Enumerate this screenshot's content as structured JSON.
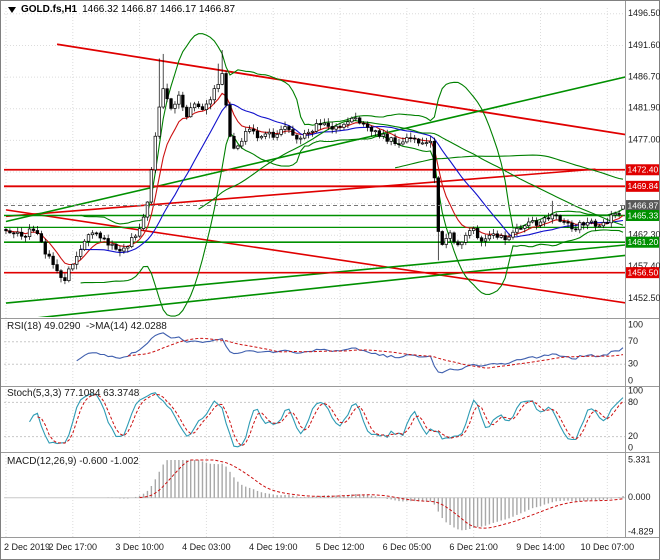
{
  "header": {
    "symbol_timeframe": "GOLD.fs,H1",
    "ohlc": "1466.32 1466.87 1466.17 1466.87"
  },
  "chart_data": {
    "type": "candlestick",
    "symbol": "GOLD.fs",
    "timeframe": "H1",
    "last_candle": {
      "open": 1466.32,
      "high": 1466.87,
      "low": 1466.17,
      "close": 1466.87
    },
    "n_bars": 158,
    "bars_per_x_label": 17,
    "x_labels": [
      "2 Dec 2019",
      "2 Dec 17:00",
      "3 Dec 10:00",
      "4 Dec 03:00",
      "4 Dec 19:00",
      "5 Dec 12:00",
      "6 Dec 05:00",
      "6 Dec 21:00",
      "9 Dec 14:00",
      "10 Dec 07:00"
    ],
    "y_axis_range": {
      "top": 1497.4,
      "bottom": 1449.8
    },
    "y_ticks": [
      {
        "label": "1496.50",
        "price": 1496.5
      },
      {
        "label": "1491.60",
        "price": 1491.6
      },
      {
        "label": "1486.70",
        "price": 1486.7
      },
      {
        "label": "1481.90",
        "price": 1481.9
      },
      {
        "label": "1477.00",
        "price": 1477.0
      },
      {
        "label": "1462.30",
        "price": 1462.3
      },
      {
        "label": "1457.40",
        "price": 1457.4
      },
      {
        "label": "1452.50",
        "price": 1452.5
      }
    ],
    "price_badges": [
      {
        "label": "1472.40",
        "price": 1472.4,
        "color": "#e00000"
      },
      {
        "label": "1469.84",
        "price": 1469.84,
        "color": "#e00000"
      },
      {
        "label": "1466.87",
        "price": 1466.87,
        "color": "#585858"
      },
      {
        "label": "1465.33",
        "price": 1465.33,
        "color": "#009000"
      },
      {
        "label": "1461.20",
        "price": 1461.2,
        "color": "#009000"
      },
      {
        "label": "1456.50",
        "price": 1456.5,
        "color": "#e00000"
      }
    ],
    "levels": [
      {
        "price": 1472.4,
        "color": "#e00000",
        "width": 1.8
      },
      {
        "price": 1469.84,
        "color": "#e00000",
        "width": 1.8
      },
      {
        "price": 1465.33,
        "color": "#009000",
        "width": 1.6
      },
      {
        "price": 1463.5,
        "color": "#009000",
        "width": 1.2
      },
      {
        "price": 1461.2,
        "color": "#009000",
        "width": 1.6
      },
      {
        "price": 1456.5,
        "color": "#e00000",
        "width": 1.6
      }
    ],
    "bid_line": {
      "price": 1466.87,
      "color": "#777777"
    },
    "trendlines": [
      {
        "b1": 13,
        "p1": 1491.8,
        "b2": 158,
        "p2": 1477.8,
        "color": "#e00000",
        "width": 1.8
      },
      {
        "b1": 0,
        "p1": 1465.2,
        "b2": 150,
        "p2": 1472.5,
        "color": "#e00000",
        "width": 1.6
      },
      {
        "b1": 0,
        "p1": 1466.2,
        "b2": 158,
        "p2": 1451.8,
        "color": "#e00000",
        "width": 1.6
      },
      {
        "b1": 0,
        "p1": 1464.4,
        "b2": 158,
        "p2": 1486.8,
        "color": "#009000",
        "width": 1.6
      },
      {
        "b1": 0,
        "p1": 1451.8,
        "b2": 158,
        "p2": 1460.8,
        "color": "#009000",
        "width": 1.6
      },
      {
        "b1": 0,
        "p1": 1449.0,
        "b2": 158,
        "p2": 1459.2,
        "color": "#009000",
        "width": 1.6
      }
    ],
    "price_path": [
      [
        0,
        1463.2
      ],
      [
        4,
        1462.0
      ],
      [
        7,
        1463.3
      ],
      [
        10,
        1459.8
      ],
      [
        13,
        1456.6
      ],
      [
        15,
        1455.6
      ],
      [
        17,
        1458.0
      ],
      [
        20,
        1461.5
      ],
      [
        23,
        1462.8
      ],
      [
        26,
        1461.0
      ],
      [
        29,
        1459.8
      ],
      [
        32,
        1461.5
      ],
      [
        34,
        1463.0
      ],
      [
        36,
        1467.5
      ],
      [
        38,
        1477.5
      ],
      [
        39,
        1482.0
      ],
      [
        40,
        1485.0
      ],
      [
        41,
        1483.0
      ],
      [
        42,
        1481.5
      ],
      [
        44,
        1483.5
      ],
      [
        46,
        1481.0
      ],
      [
        48,
        1482.5
      ],
      [
        50,
        1481.5
      ],
      [
        52,
        1483.0
      ],
      [
        54,
        1486.0
      ],
      [
        55,
        1487.5
      ],
      [
        56,
        1482.0
      ],
      [
        57,
        1477.5
      ],
      [
        58,
        1475.8
      ],
      [
        60,
        1477.0
      ],
      [
        62,
        1478.8
      ],
      [
        64,
        1477.2
      ],
      [
        66,
        1478.3
      ],
      [
        68,
        1477.6
      ],
      [
        71,
        1478.8
      ],
      [
        74,
        1477.2
      ],
      [
        77,
        1478.2
      ],
      [
        80,
        1479.6
      ],
      [
        83,
        1478.6
      ],
      [
        85,
        1479.2
      ],
      [
        88,
        1480.6
      ],
      [
        91,
        1479.2
      ],
      [
        94,
        1478.2
      ],
      [
        97,
        1477.2
      ],
      [
        100,
        1476.6
      ],
      [
        102,
        1477.6
      ],
      [
        104,
        1477.2
      ],
      [
        106,
        1476.4
      ],
      [
        108,
        1477.0
      ],
      [
        109,
        1471.0
      ],
      [
        110,
        1463.0
      ],
      [
        111,
        1460.8
      ],
      [
        113,
        1462.4
      ],
      [
        115,
        1460.8
      ],
      [
        117,
        1462.4
      ],
      [
        119,
        1463.0
      ],
      [
        121,
        1461.4
      ],
      [
        124,
        1462.6
      ],
      [
        127,
        1461.4
      ],
      [
        130,
        1463.0
      ],
      [
        133,
        1464.6
      ],
      [
        136,
        1464.0
      ],
      [
        139,
        1465.6
      ],
      [
        142,
        1464.0
      ],
      [
        145,
        1463.4
      ],
      [
        148,
        1464.6
      ],
      [
        151,
        1463.8
      ],
      [
        153,
        1464.6
      ],
      [
        155,
        1465.4
      ],
      [
        157,
        1466.5
      ]
    ],
    "wick_events": [
      {
        "bar": 14,
        "low": 1455.0
      },
      {
        "bar": 39,
        "high": 1489.6
      },
      {
        "bar": 40,
        "high": 1490.3
      },
      {
        "bar": 54,
        "high": 1488.8
      },
      {
        "bar": 55,
        "high": 1490.9
      },
      {
        "bar": 110,
        "low": 1458.4
      },
      {
        "bar": 139,
        "high": 1467.6
      }
    ],
    "overlays": {
      "bollinger": {
        "period": 20,
        "deviation": 2,
        "color": "#008000"
      },
      "moving_averages": [
        {
          "type": "ema",
          "period": 8,
          "color": "#cc1111"
        },
        {
          "type": "sma",
          "period": 20,
          "color": "#1111cc"
        },
        {
          "type": "sma",
          "period": 50,
          "color": "#008000"
        },
        {
          "type": "sma",
          "period": 100,
          "color": "#008000"
        }
      ]
    },
    "indicators": {
      "rsi": {
        "label": "RSI(18) 49.0290  ->MA(14) 42.0288",
        "period": 18,
        "ma_period": 14,
        "value": 49.029,
        "ma_value": 42.0288,
        "levels": [
          70,
          30
        ],
        "scale": [
          {
            "v": 100,
            "label": "100"
          },
          {
            "v": 70,
            "label": "70"
          },
          {
            "v": 30,
            "label": "30"
          },
          {
            "v": 0,
            "label": "0"
          }
        ],
        "line_color": "#3f5fae",
        "ma_color": "#cc1111"
      },
      "stoch": {
        "label": "Stoch(5,3,3) 77.1084 63.3748",
        "k_period": 5,
        "slowing": 3,
        "d_period": 3,
        "value": 77.1084,
        "signal": 63.3748,
        "levels": [
          80,
          20
        ],
        "scale": [
          {
            "v": 100,
            "label": "100"
          },
          {
            "v": 80,
            "label": "80"
          },
          {
            "v": 20,
            "label": "20"
          },
          {
            "v": 0,
            "label": "0"
          }
        ],
        "line_color": "#2e9bb4",
        "signal_color": "#cc1111"
      },
      "macd": {
        "label": "MACD(12,26,9) -0.600 -1.002",
        "fast": 12,
        "slow": 26,
        "signal_period": 9,
        "value": -0.6,
        "signal": -1.002,
        "scale": [
          {
            "v": 5.331,
            "label": "5.331"
          },
          {
            "v": 0,
            "label": "0.000"
          },
          {
            "v": -4.829,
            "label": "-4.829"
          }
        ],
        "hist_color": "#a8a8a8",
        "signal_color": "#cc1111"
      }
    },
    "colors": {
      "bull": "#ffffff",
      "bear": "#000000",
      "outline": "#000000",
      "grid": "#dcdcdc",
      "separator": "#9a9a9a",
      "border": "#808080"
    }
  }
}
